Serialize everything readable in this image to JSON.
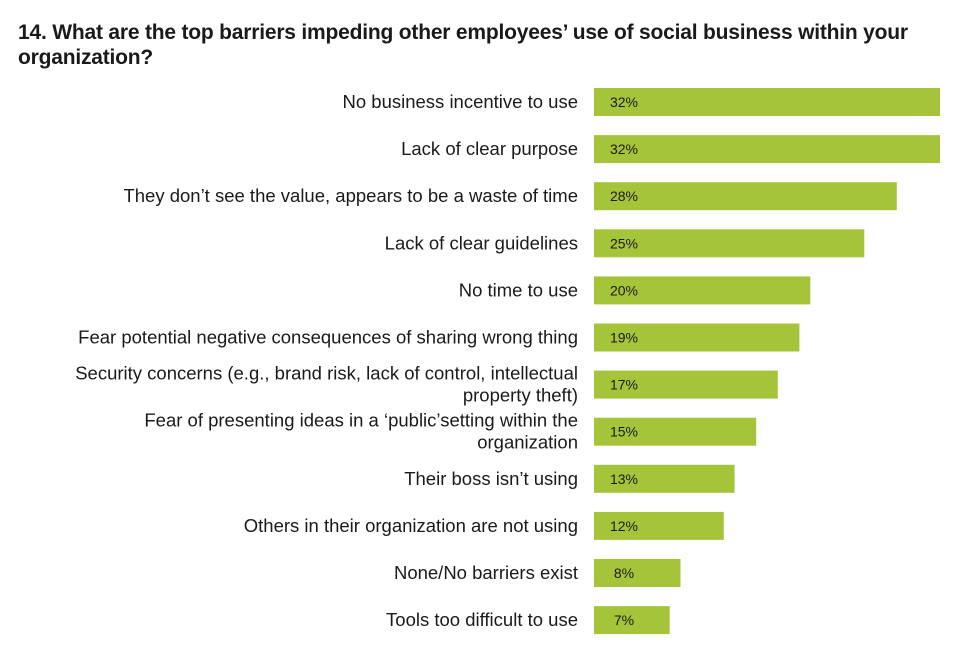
{
  "chart_data": {
    "type": "bar",
    "orientation": "horizontal",
    "title": "14. What are the top barriers impeding other employees’ use of social business within your organization?",
    "categories": [
      [
        "No business incentive to use"
      ],
      [
        "Lack of clear purpose"
      ],
      [
        "They don’t see the value, appears to be a waste of time"
      ],
      [
        "Lack of clear guidelines"
      ],
      [
        "No time to use"
      ],
      [
        "Fear potential negative consequences of sharing wrong thing"
      ],
      [
        "Security concerns (e.g., brand risk, lack of control, intellectual",
        "property theft)"
      ],
      [
        "Fear of presenting ideas in a ‘public’setting within the",
        "organization"
      ],
      [
        "Their boss isn’t using"
      ],
      [
        "Others in their organization are not using"
      ],
      [
        "None/No barriers exist"
      ],
      [
        "Tools too difficult to use"
      ]
    ],
    "values": [
      32,
      32,
      28,
      25,
      20,
      19,
      17,
      15,
      13,
      12,
      8,
      7
    ],
    "value_labels": [
      "32%",
      "32%",
      "28%",
      "25%",
      "20%",
      "19%",
      "17%",
      "15%",
      "13%",
      "12%",
      "8%",
      "7%"
    ],
    "bar_color": "#a6c43a",
    "xlim": [
      0,
      32
    ],
    "grid": false,
    "legend": "none"
  }
}
